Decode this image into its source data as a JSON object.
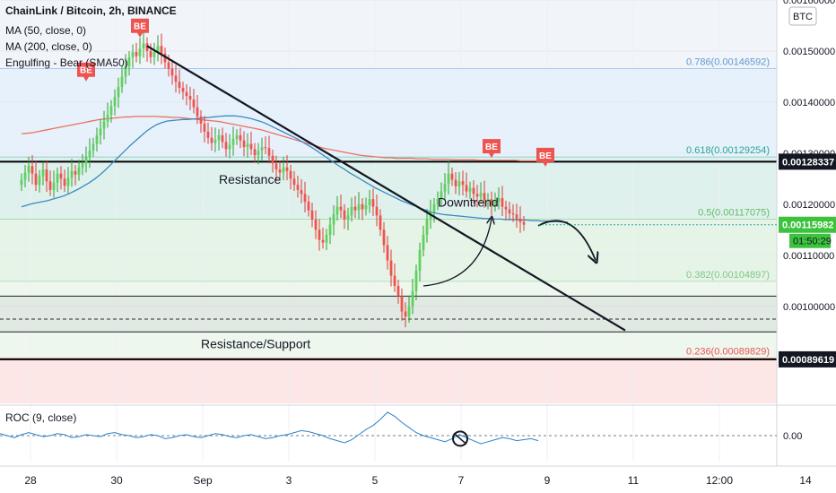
{
  "chart_data": {
    "type": "candlestick",
    "title": "ChainLink / Bitcoin, 2h, BINANCE",
    "indicators": [
      "MA (50, close, 0)",
      "MA (200, close, 0)",
      "Engulfing - Bear (SMA50)"
    ],
    "currency_label": "BTC",
    "ylim": [
      0.00081,
      0.0016
    ],
    "y_ticks": [
      {
        "value": 0.0016,
        "label": "0.00160000"
      },
      {
        "value": 0.0015,
        "label": "0.00150000"
      },
      {
        "value": 0.0014,
        "label": "0.00140000"
      },
      {
        "value": 0.0013,
        "label": "0.00130000"
      },
      {
        "value": 0.0012,
        "label": "0.00120000"
      },
      {
        "value": 0.0011,
        "label": "0.00110000"
      },
      {
        "value": 0.001,
        "label": "0.00100000"
      }
    ],
    "x_ticks": [
      {
        "index": 0,
        "label": "28"
      },
      {
        "index": 24,
        "label": "30"
      },
      {
        "index": 48,
        "label": "Sep"
      },
      {
        "index": 72,
        "label": "3"
      },
      {
        "index": 96,
        "label": "5"
      },
      {
        "index": 120,
        "label": "7"
      },
      {
        "index": 144,
        "label": "9"
      },
      {
        "index": 168,
        "label": "11"
      },
      {
        "index": 192,
        "label": "12:00"
      },
      {
        "index": 216,
        "label": "14"
      }
    ],
    "fib_levels": [
      {
        "label": "0.786(0.00146592)",
        "value": 0.00146592,
        "color": "#5b9bd5"
      },
      {
        "label": "0.618(0.00129254)",
        "value": 0.00129254,
        "color": "#26a69a"
      },
      {
        "label": "0.5(0.00117075)",
        "value": 0.00117075,
        "color": "#66bb6a"
      },
      {
        "label": "0.382(0.00104897)",
        "value": 0.00104897,
        "color": "#81c784"
      },
      {
        "label": "0.236(0.00089829)",
        "value": 0.00089829,
        "color": "#ef5350"
      }
    ],
    "horizontal_lines": [
      {
        "value": 0.00128337,
        "label": "0.00128337"
      },
      {
        "value": 0.00089619,
        "label": "0.00089619"
      }
    ],
    "current_price": {
      "value": 0.00115982,
      "label": "0.00115982",
      "countdown": "01:50:29"
    },
    "annotations": {
      "resistance": "Resistance",
      "downtrend": "Downtrend",
      "support": "Resistance/Support"
    },
    "pattern_marker": "BE",
    "pattern_marks": [
      {
        "index": 18,
        "price": 0.001432
      },
      {
        "index": 33,
        "price": 0.001518
      },
      {
        "index": 131,
        "price": 0.001282
      },
      {
        "index": 146,
        "price": 0.001265
      }
    ],
    "close_series": [
      0.001248,
      0.001262,
      0.001275,
      0.00126,
      0.001238,
      0.001255,
      0.001268,
      0.001245,
      0.001228,
      0.001242,
      0.00126,
      0.00125,
      0.001236,
      0.001252,
      0.001265,
      0.001258,
      0.001272,
      0.00128,
      0.001292,
      0.001305,
      0.001318,
      0.001335,
      0.001348,
      0.001362,
      0.001375,
      0.001392,
      0.00141,
      0.00143,
      0.00145,
      0.00147,
      0.001488,
      0.001498,
      0.00149,
      0.001505,
      0.001515,
      0.0015,
      0.001488,
      0.001498,
      0.00151,
      0.001495,
      0.001478,
      0.001465,
      0.001452,
      0.00144,
      0.001428,
      0.00142,
      0.001412,
      0.001405,
      0.00139,
      0.001372,
      0.001358,
      0.001342,
      0.00133,
      0.00132,
      0.001326,
      0.001335,
      0.001322,
      0.001308,
      0.001316,
      0.001328,
      0.001335,
      0.001325,
      0.001312,
      0.001318,
      0.001308,
      0.001296,
      0.001305,
      0.001312,
      0.00131,
      0.001295,
      0.00128,
      0.001268,
      0.001262,
      0.001272,
      0.001265,
      0.00125,
      0.001238,
      0.001228,
      0.00122,
      0.001205,
      0.001188,
      0.00117,
      0.00115,
      0.00113,
      0.001125,
      0.00114,
      0.00116,
      0.00118,
      0.001195,
      0.001188,
      0.00117,
      0.001178,
      0.001195,
      0.001188,
      0.0012,
      0.00119,
      0.001198,
      0.00121,
      0.001195,
      0.001178,
      0.00115,
      0.00112,
      0.00109,
      0.00106,
      0.00104,
      0.00102,
      0.00099,
      0.00098,
      0.001,
      0.00103,
      0.00107,
      0.00111,
      0.00114,
      0.00117,
      0.001185,
      0.0012,
      0.00121,
      0.001225,
      0.00124,
      0.00126,
      0.001248,
      0.001235,
      0.001245,
      0.001238,
      0.001225,
      0.001232,
      0.00122,
      0.001215,
      0.001222,
      0.001208,
      0.00121,
      0.001198,
      0.001205,
      0.001212,
      0.001195,
      0.00119,
      0.001182,
      0.00118,
      0.001172,
      0.001165,
      0.00116
    ],
    "ma50_series": [
      0.001195,
      0.001198,
      0.001201,
      0.001203,
      0.001205,
      0.001207,
      0.00121,
      0.001213,
      0.001216,
      0.00122,
      0.001225,
      0.00123,
      0.001236,
      0.001242,
      0.001249,
      0.001257,
      0.001266,
      0.001276,
      0.001286,
      0.001296,
      0.001306,
      0.001316,
      0.001325,
      0.001334,
      0.001343,
      0.00135,
      0.001356,
      0.00136,
      0.001363,
      0.001364,
      0.001365,
      0.001366,
      0.001366,
      0.001367,
      0.001368,
      0.001369,
      0.00137,
      0.001371,
      0.001372,
      0.001373,
      0.001373,
      0.001373,
      0.001372,
      0.00137,
      0.001368,
      0.001365,
      0.001362,
      0.001358,
      0.001353,
      0.001348,
      0.001343,
      0.001338,
      0.001333,
      0.001328,
      0.001322,
      0.001316,
      0.00131,
      0.001303,
      0.001296,
      0.001289,
      0.001282,
      0.001275,
      0.001269,
      0.001262,
      0.001256,
      0.00125,
      0.001244,
      0.001238,
      0.001232,
      0.001227,
      0.001222,
      0.001217,
      0.001212,
      0.001207,
      0.001203,
      0.001199,
      0.001195,
      0.001191,
      0.001187,
      0.001184,
      0.001182,
      0.00118,
      0.001179,
      0.001178,
      0.001177,
      0.001176,
      0.001175,
      0.001174,
      0.001173,
      0.001172,
      0.001172,
      0.001171,
      0.001171,
      0.00117,
      0.00117,
      0.00117,
      0.001169,
      0.001169,
      0.001168,
      0.001168,
      0.001167,
      0.001167,
      0.001166,
      0.001166,
      0.001165,
      0.001165
    ],
    "ma200_series": [
      0.001338,
      0.001339,
      0.00134,
      0.001342,
      0.001344,
      0.001346,
      0.001348,
      0.00135,
      0.001352,
      0.001354,
      0.001356,
      0.001358,
      0.00136,
      0.001362,
      0.001364,
      0.001366,
      0.001367,
      0.001368,
      0.001369,
      0.00137,
      0.001371,
      0.001371,
      0.001372,
      0.001372,
      0.001372,
      0.001372,
      0.001372,
      0.001371,
      0.001371,
      0.00137,
      0.00137,
      0.001369,
      0.001368,
      0.001367,
      0.001366,
      0.001365,
      0.001364,
      0.001363,
      0.001362,
      0.00136,
      0.001358,
      0.001356,
      0.001354,
      0.001352,
      0.00135,
      0.001348,
      0.001346,
      0.001343,
      0.00134,
      0.001337,
      0.001334,
      0.001331,
      0.001328,
      0.001325,
      0.001322,
      0.001319,
      0.001316,
      0.001313,
      0.00131,
      0.001308,
      0.001306,
      0.001304,
      0.001302,
      0.0013,
      0.001298,
      0.001296,
      0.001295,
      0.001294,
      0.001293,
      0.001292,
      0.001291,
      0.001291,
      0.00129,
      0.00129,
      0.00129,
      0.00129,
      0.001289,
      0.001289,
      0.001289,
      0.001288,
      0.001288,
      0.001288,
      0.001288,
      0.001287,
      0.001287,
      0.001287,
      0.001287,
      0.001287,
      0.001286,
      0.001286,
      0.001286,
      0.001286,
      0.001286,
      0.001286,
      0.001286,
      0.001286,
      0.001285,
      0.001285,
      0.001285,
      0.001285,
      0.001285
    ],
    "roc_label": "ROC (9, close)",
    "roc_ticks": [
      {
        "value": 0,
        "label": "0.00"
      }
    ],
    "roc_ylim": [
      -3,
      3
    ],
    "roc_series": [
      0.2,
      0.0,
      -0.2,
      0.1,
      0.3,
      0.1,
      -0.1,
      0.0,
      0.2,
      0.1,
      -0.2,
      -0.1,
      0.1,
      0.0,
      -0.1,
      0.2,
      0.3,
      0.1,
      0.0,
      -0.2,
      -0.1,
      0.1,
      0.0,
      -0.3,
      -0.2,
      0.0,
      0.1,
      -0.1,
      -0.2,
      0.0,
      0.2,
      0.1,
      -0.1,
      -0.2,
      0.0,
      0.1,
      -0.1,
      -0.3,
      -0.2,
      0.0,
      0.1,
      0.3,
      0.5,
      0.4,
      0.2,
      0.0,
      -0.3,
      -0.5,
      -0.7,
      -0.4,
      0.1,
      0.6,
      1.0,
      1.6,
      2.3,
      1.9,
      1.3,
      0.8,
      0.3,
      0.0,
      -0.2,
      -0.4,
      -0.6,
      -0.3,
      0.1,
      -0.2,
      -0.5,
      -0.8,
      -0.6,
      -0.4,
      -0.2,
      -0.3,
      -0.5,
      -0.4,
      -0.3,
      -0.5
    ],
    "roc_marker_index": 63
  }
}
